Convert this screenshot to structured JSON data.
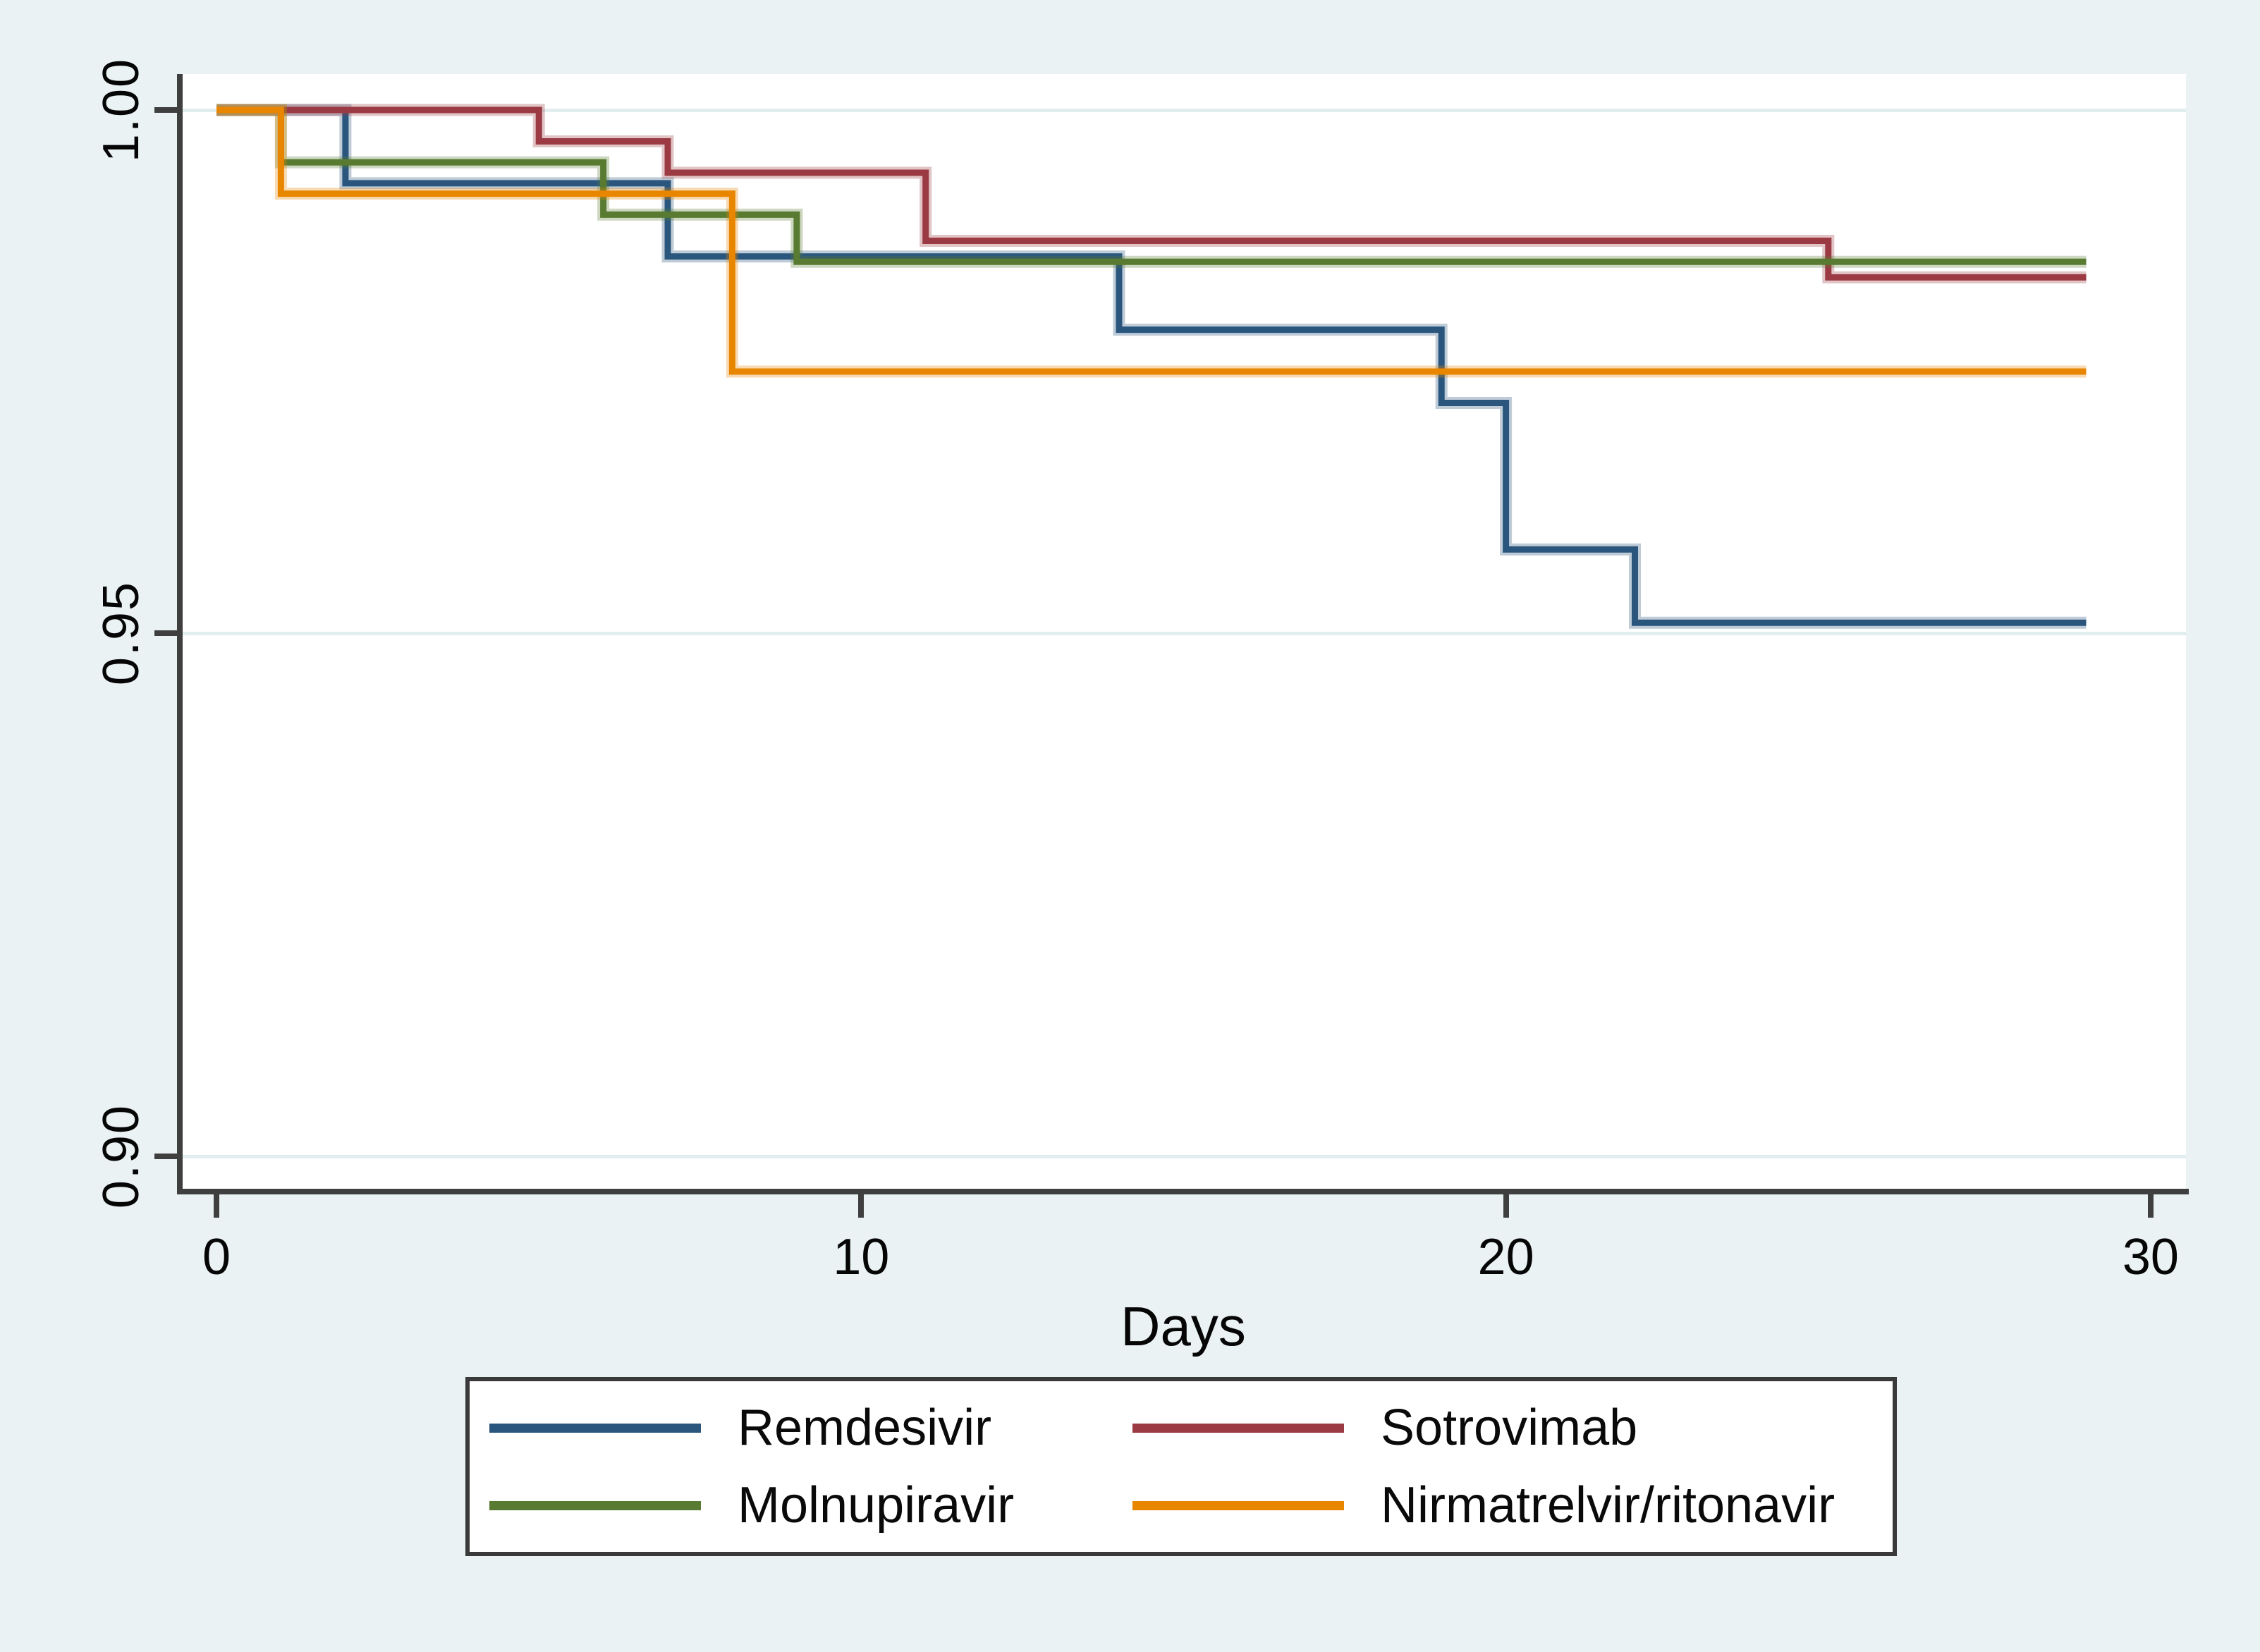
{
  "figure": {
    "background": "#eaf2f3",
    "plot_background": "#ffffff",
    "axis_color": "#3f3f3f",
    "grid_color": "#e2edf0",
    "text_color": "#060606"
  },
  "chart_data": {
    "type": "line",
    "subtype": "kaplan-meier-step",
    "title": "",
    "xlabel": "Days",
    "ylabel": "",
    "x_ticks": [
      0,
      10,
      20,
      30
    ],
    "x_tick_labels": [
      "0",
      "10",
      "20",
      "30"
    ],
    "y_ticks": [
      1.0,
      0.95,
      0.9
    ],
    "y_tick_labels": [
      "1.00",
      "0.95",
      "0.90"
    ],
    "xlim": [
      0,
      30
    ],
    "ylim": [
      0.9,
      1.0
    ],
    "grid": "horizontal-only",
    "legend_position": "below-plot",
    "legend_columns": 2,
    "series": [
      {
        "name": "Remdesivir",
        "color": "#2a567d",
        "points": [
          [
            0,
            1.0
          ],
          [
            2,
            1.0
          ],
          [
            2,
            0.993
          ],
          [
            7,
            0.993
          ],
          [
            7,
            0.986
          ],
          [
            14,
            0.986
          ],
          [
            14,
            0.979
          ],
          [
            19,
            0.979
          ],
          [
            19,
            0.972
          ],
          [
            20,
            0.972
          ],
          [
            20,
            0.958
          ],
          [
            22,
            0.958
          ],
          [
            22,
            0.951
          ],
          [
            29,
            0.951
          ]
        ]
      },
      {
        "name": "Sotrovimab",
        "color": "#9b3a42",
        "points": [
          [
            0,
            1.0
          ],
          [
            5,
            1.0
          ],
          [
            5,
            0.997
          ],
          [
            7,
            0.997
          ],
          [
            7,
            0.994
          ],
          [
            11,
            0.994
          ],
          [
            11,
            0.9875
          ],
          [
            25,
            0.9875
          ],
          [
            25,
            0.984
          ],
          [
            29,
            0.984
          ]
        ]
      },
      {
        "name": "Molnupiravir",
        "color": "#587b31",
        "points": [
          [
            0,
            1.0
          ],
          [
            1,
            1.0
          ],
          [
            1,
            0.995
          ],
          [
            6,
            0.995
          ],
          [
            6,
            0.99
          ],
          [
            9,
            0.99
          ],
          [
            9,
            0.9855
          ],
          [
            29,
            0.9855
          ]
        ]
      },
      {
        "name": "Nirmatrelvir/ritonavir",
        "color": "#e88600",
        "points": [
          [
            0,
            1.0
          ],
          [
            1,
            1.0
          ],
          [
            1,
            0.992
          ],
          [
            8,
            0.992
          ],
          [
            8,
            0.975
          ],
          [
            29,
            0.975
          ]
        ]
      }
    ]
  }
}
